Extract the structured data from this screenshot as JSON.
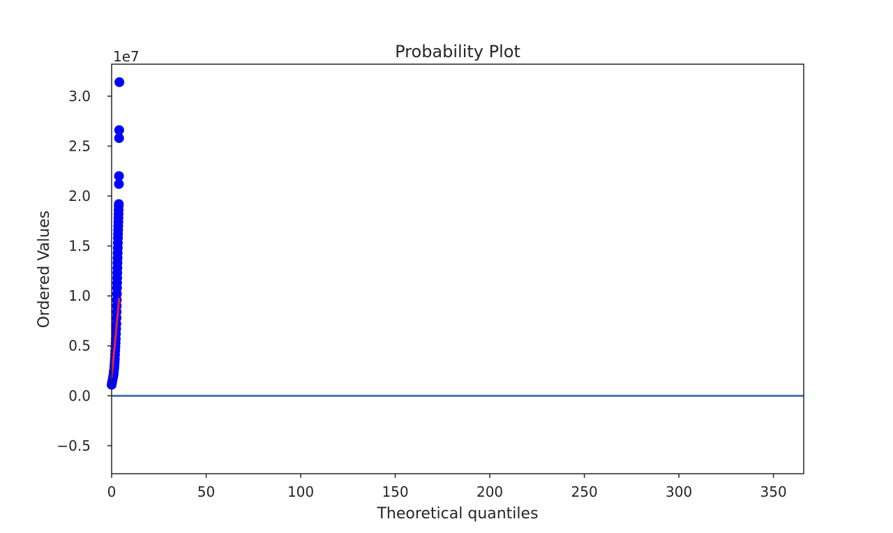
{
  "chart_data": {
    "type": "scatter",
    "title": "Probability Plot",
    "xlabel": "Theoretical quantiles",
    "ylabel": "Ordered Values",
    "y_offset_label": "1e7",
    "xlim": [
      0,
      366
    ],
    "ylim": [
      -0.78,
      3.32
    ],
    "x_ticks": [
      0,
      50,
      100,
      150,
      200,
      250,
      300,
      350
    ],
    "x_tick_labels": [
      "0",
      "50",
      "100",
      "150",
      "200",
      "250",
      "300",
      "350"
    ],
    "y_ticks": [
      -0.5,
      0.0,
      0.5,
      1.0,
      1.5,
      2.0,
      2.5,
      3.0
    ],
    "y_tick_labels": [
      "−0.5",
      "0.0",
      "0.5",
      "1.0",
      "1.5",
      "2.0",
      "2.5",
      "3.0"
    ],
    "grid": false,
    "colors": {
      "points": "#0000ff",
      "fit_line": "#e8233c",
      "baseline": "#4c72b0",
      "axes": "#262626"
    },
    "series": [
      {
        "name": "",
        "marker": "circle",
        "x": [
          0.0,
          0.2,
          0.4,
          0.6,
          0.8,
          1.0,
          1.1,
          1.2,
          1.4,
          1.5,
          1.6,
          1.7,
          1.8,
          1.9,
          2.0,
          2.1,
          2.2,
          2.3,
          2.4,
          2.5,
          2.6,
          2.65,
          2.7,
          2.75,
          2.8,
          2.85,
          2.9,
          2.95,
          3.0,
          3.05,
          3.1,
          3.15,
          3.2,
          3.25,
          3.3,
          3.35,
          3.4,
          3.45,
          3.5,
          3.55,
          3.6,
          3.65,
          3.7,
          3.75,
          3.8,
          3.85,
          3.9,
          3.95,
          4.0,
          4.1
        ],
        "values": [
          0.11,
          0.13,
          0.15,
          0.17,
          0.19,
          0.21,
          0.23,
          0.25,
          0.28,
          0.31,
          0.34,
          0.37,
          0.41,
          0.45,
          0.49,
          0.53,
          0.57,
          0.62,
          0.67,
          0.72,
          0.78,
          0.84,
          0.9,
          0.96,
          1.02,
          1.08,
          1.13,
          1.18,
          1.23,
          1.28,
          1.33,
          1.38,
          1.43,
          1.48,
          1.53,
          1.58,
          1.62,
          1.66,
          1.7,
          1.74,
          1.78,
          1.82,
          1.86,
          1.9,
          1.92,
          2.12,
          2.2,
          2.58,
          2.66,
          3.14
        ]
      }
    ],
    "fit_line": {
      "x": [
        0.0,
        4.0
      ],
      "values": [
        0.18,
        0.98
      ]
    },
    "baseline": {
      "y": 0.0
    }
  }
}
